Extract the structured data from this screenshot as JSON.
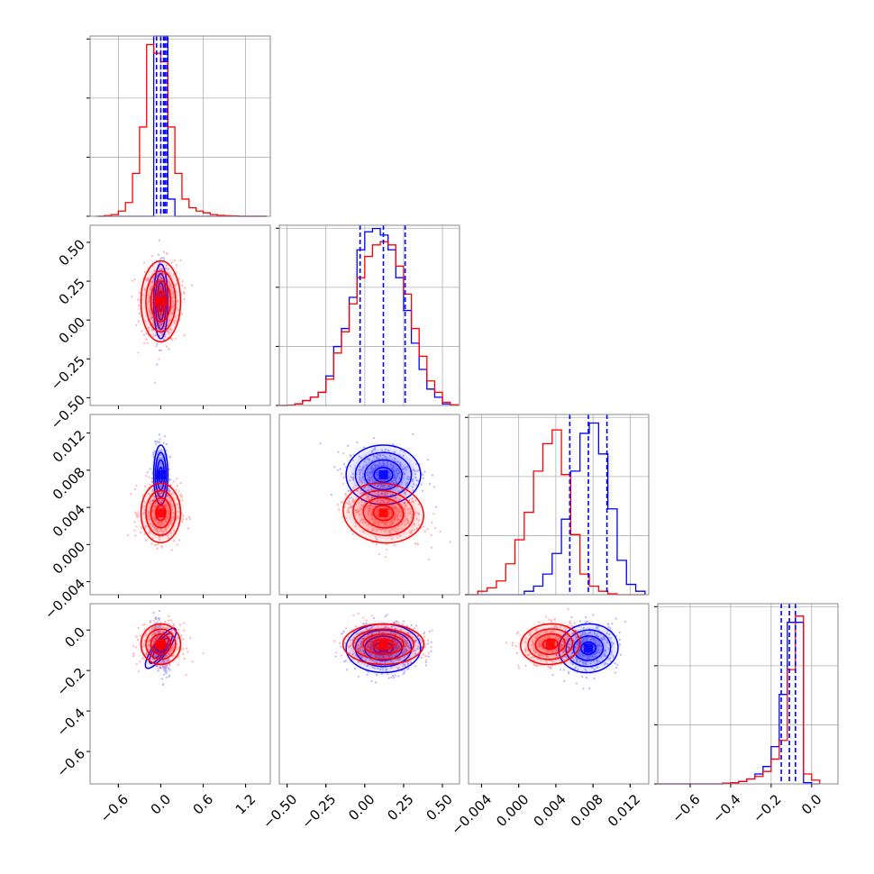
{
  "chart_data": {
    "type": "corner",
    "title": "",
    "grid": true,
    "colors": {
      "series_a": "#0000ff",
      "series_b": "#ff0000"
    },
    "series": [
      {
        "color": "#0000ff",
        "mean": [
          0.0,
          0.12,
          0.0075,
          -0.09
        ],
        "std": [
          0.05,
          0.12,
          0.0016,
          0.06
        ],
        "corr": {
          "0-3": -0.5,
          "2-3": 0.2
        }
      },
      {
        "color": "#ff0000",
        "mean": [
          0.0,
          0.12,
          0.0034,
          -0.07
        ],
        "std": [
          0.14,
          0.13,
          0.0016,
          0.05
        ],
        "corr": {
          "1-2": -0.3,
          "2-3": 0.2
        }
      }
    ],
    "parameters": [
      {
        "ticks": [
          -0.6,
          0.0,
          0.6,
          1.2
        ],
        "labels": [
          "−0.6",
          "0.0",
          "0.6",
          "1.2"
        ],
        "range": [
          -1.0,
          1.55
        ]
      },
      {
        "ticks": [
          -0.5,
          -0.25,
          0.0,
          0.25,
          0.5
        ],
        "labels": [
          "−0.50",
          "−0.25",
          "0.00",
          "0.25",
          "0.50"
        ],
        "range": [
          -0.55,
          0.61
        ]
      },
      {
        "ticks": [
          -0.004,
          0.0,
          0.004,
          0.008,
          0.012
        ],
        "labels": [
          "−0.004",
          "0.000",
          "0.004",
          "0.008",
          "0.012"
        ],
        "range": [
          -0.0054,
          0.014
        ]
      },
      {
        "ticks": [
          -0.6,
          -0.4,
          -0.2,
          0.0
        ],
        "labels": [
          "−0.6",
          "−0.4",
          "−0.2",
          "0.0"
        ],
        "range": [
          -0.76,
          0.13
        ]
      }
    ],
    "histograms": [
      {
        "bins": [
          -0.9,
          -0.8,
          -0.7,
          -0.6,
          -0.5,
          -0.4,
          -0.3,
          -0.2,
          -0.1,
          0.0,
          0.1,
          0.2,
          0.3,
          0.4,
          0.5,
          0.6,
          0.7,
          0.8,
          0.9,
          1.0,
          1.1,
          1.2,
          1.3,
          1.4,
          1.5
        ],
        "red": [
          0,
          0.004,
          0.01,
          0.03,
          0.08,
          0.25,
          0.52,
          1.0,
          0.95,
          0.9,
          0.52,
          0.25,
          0.1,
          0.05,
          0.03,
          0.02,
          0.01,
          0.005,
          0.003,
          0.002,
          0,
          0,
          0,
          0
        ],
        "blue": [
          0,
          0,
          0,
          0,
          0,
          0,
          0,
          0,
          2.8,
          2.8,
          0.1,
          0,
          0,
          0,
          0,
          0,
          0,
          0,
          0,
          0,
          0,
          0,
          0,
          0
        ],
        "quantiles": [
          -0.06,
          0.0,
          0.04,
          0.06,
          0.085
        ],
        "ylim": [
          0,
          1.05
        ]
      },
      {
        "bins": [
          -0.55,
          -0.5,
          -0.45,
          -0.4,
          -0.35,
          -0.3,
          -0.25,
          -0.2,
          -0.15,
          -0.1,
          -0.05,
          0.0,
          0.05,
          0.1,
          0.15,
          0.2,
          0.25,
          0.3,
          0.35,
          0.4,
          0.45,
          0.5,
          0.55,
          0.6
        ],
        "red": [
          0,
          0.002,
          0.01,
          0.03,
          0.05,
          0.08,
          0.16,
          0.32,
          0.45,
          0.62,
          0.78,
          0.91,
          0.98,
          1.0,
          0.98,
          0.85,
          0.68,
          0.47,
          0.3,
          0.15,
          0.08,
          0.02,
          0.005
        ],
        "blue": [
          0,
          0.002,
          0.01,
          0.03,
          0.05,
          0.08,
          0.18,
          0.36,
          0.47,
          0.66,
          0.95,
          1.06,
          1.08,
          1.04,
          0.95,
          0.78,
          0.58,
          0.38,
          0.22,
          0.1,
          0.05,
          0.01,
          0.003
        ],
        "quantiles": [
          -0.03,
          0.12,
          0.26
        ],
        "ylim": [
          0,
          1.1
        ]
      },
      {
        "bins": [
          -0.0054,
          -0.0044,
          -0.0034,
          -0.0024,
          -0.0014,
          -0.0004,
          0.0006,
          0.0016,
          0.0026,
          0.0036,
          0.0046,
          0.0056,
          0.0066,
          0.0076,
          0.0086,
          0.0096,
          0.0106,
          0.0116,
          0.0126,
          0.0136
        ],
        "red": [
          0,
          0.02,
          0.04,
          0.08,
          0.18,
          0.32,
          0.48,
          0.72,
          0.88,
          0.96,
          0.7,
          0.35,
          0.12,
          0.05,
          0.02,
          0.005,
          0,
          0,
          0
        ],
        "blue": [
          0,
          0,
          0,
          0,
          0,
          0,
          0.02,
          0.05,
          0.12,
          0.24,
          0.44,
          0.72,
          0.94,
          1.0,
          0.82,
          0.5,
          0.2,
          0.06,
          0.02
        ],
        "quantiles": [
          0.0055,
          0.0075,
          0.0095
        ],
        "ylim": [
          0,
          1.05
        ]
      },
      {
        "bins": [
          -0.76,
          -0.72,
          -0.68,
          -0.64,
          -0.6,
          -0.56,
          -0.52,
          -0.48,
          -0.44,
          -0.4,
          -0.36,
          -0.32,
          -0.28,
          -0.24,
          -0.2,
          -0.16,
          -0.12,
          -0.08,
          -0.04,
          0.0,
          0.04
        ],
        "red": [
          0,
          0,
          0,
          0,
          0,
          0,
          0,
          0,
          0.005,
          0.01,
          0.02,
          0.04,
          0.06,
          0.1,
          0.2,
          0.35,
          0.92,
          1.35,
          0.08,
          0.03
        ],
        "blue": [
          0,
          0,
          0,
          0,
          0,
          0,
          0,
          0,
          0.005,
          0.01,
          0.02,
          0.04,
          0.08,
          0.14,
          0.3,
          0.72,
          1.3,
          1.3,
          0.01,
          0
        ],
        "quantiles": [
          -0.15,
          -0.11,
          -0.08
        ],
        "ylim": [
          0,
          1.45
        ]
      }
    ]
  }
}
